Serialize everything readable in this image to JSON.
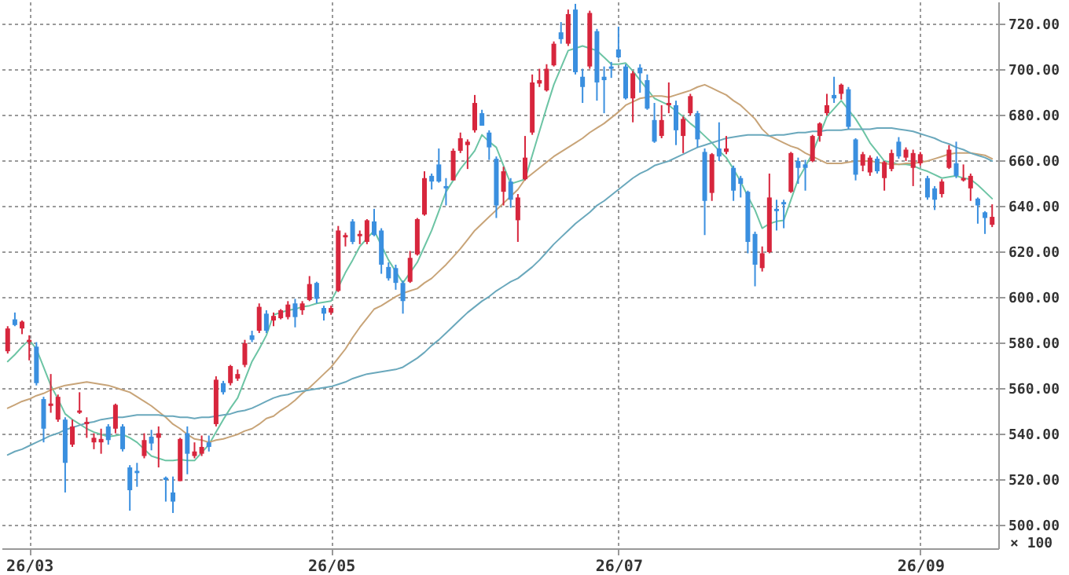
{
  "chart_data": {
    "type": "candlestick",
    "categories": [
      null,
      null,
      null,
      "26/03",
      null,
      null,
      null,
      null,
      null,
      null,
      null,
      null,
      null,
      null,
      null,
      null,
      null,
      null,
      null,
      null,
      null,
      null,
      null,
      null,
      null,
      null,
      null,
      null,
      null,
      null,
      null,
      null,
      null,
      null,
      null,
      null,
      null,
      null,
      null,
      null,
      null,
      null,
      null,
      null,
      null,
      "26/05",
      null,
      null,
      null,
      null,
      null,
      null,
      null,
      null,
      null,
      null,
      null,
      null,
      null,
      null,
      null,
      null,
      null,
      null,
      null,
      null,
      null,
      null,
      null,
      null,
      null,
      null,
      null,
      null,
      null,
      null,
      null,
      null,
      null,
      null,
      null,
      null,
      null,
      null,
      null,
      "26/07",
      null,
      null,
      null,
      null,
      null,
      null,
      null,
      null,
      null,
      null,
      null,
      null,
      null,
      null,
      null,
      null,
      null,
      null,
      null,
      null,
      null,
      null,
      null,
      null,
      null,
      null,
      null,
      null,
      null,
      null,
      null,
      null,
      null,
      null,
      null,
      null,
      null,
      null,
      null,
      null,
      null,
      "26/09",
      null,
      null,
      null,
      null,
      null,
      null,
      null,
      null,
      null,
      null
    ],
    "ohlc": [
      [
        576,
        587,
        575,
        586
      ],
      [
        590,
        593,
        587,
        587.5
      ],
      [
        586,
        589.5,
        583.5,
        589
      ],
      [
        580,
        583,
        572,
        581
      ],
      [
        578,
        580,
        561,
        562
      ],
      [
        555,
        556,
        536,
        542
      ],
      [
        552,
        566,
        549,
        553
      ],
      [
        546,
        557,
        545,
        556
      ],
      [
        546,
        547,
        514,
        527
      ],
      [
        535,
        546,
        534,
        543
      ],
      [
        549,
        558,
        548.5,
        550
      ],
      [
        544,
        547,
        538,
        545
      ],
      [
        536,
        540,
        533,
        538
      ],
      [
        536,
        542,
        531,
        537.5
      ],
      [
        543,
        544,
        535,
        537
      ],
      [
        542,
        553,
        540,
        552.5
      ],
      [
        543,
        544,
        532,
        533
      ],
      [
        525,
        526,
        506,
        515
      ],
      [
        523.5,
        527,
        516.5,
        522.5
      ],
      [
        530,
        540,
        529,
        537
      ],
      [
        538.5,
        541.5,
        532.5,
        535.5
      ],
      [
        538,
        543,
        525,
        540
      ],
      [
        520.5,
        521,
        510,
        519.5
      ],
      [
        514,
        521,
        505,
        510
      ],
      [
        519,
        538,
        519,
        537.5
      ],
      [
        540,
        543,
        522,
        531
      ],
      [
        530,
        536,
        529,
        532
      ],
      [
        531,
        539,
        530,
        534
      ],
      [
        536,
        539,
        532,
        534
      ],
      [
        544,
        565,
        543,
        563.5
      ],
      [
        562,
        563,
        557,
        558
      ],
      [
        562,
        570,
        561,
        569.5
      ],
      [
        564,
        568,
        563,
        566
      ],
      [
        570,
        581,
        569,
        579.5
      ],
      [
        583,
        585,
        580,
        581
      ],
      [
        585,
        597,
        584,
        595.5
      ],
      [
        592.5,
        594,
        584,
        585
      ],
      [
        589.5,
        593,
        587,
        591.5
      ],
      [
        590.5,
        594.5,
        590,
        594
      ],
      [
        591,
        598,
        590,
        596.5
      ],
      [
        597,
        599,
        586.5,
        591
      ],
      [
        594,
        598,
        592,
        597
      ],
      [
        598.5,
        609,
        598,
        605.5
      ],
      [
        606,
        606.5,
        597,
        599
      ],
      [
        595,
        596,
        589.5,
        592.5
      ],
      [
        593,
        596,
        592,
        595
      ],
      [
        602.5,
        631,
        602,
        629
      ],
      [
        626,
        628,
        622,
        627
      ],
      [
        633,
        634,
        623,
        624
      ],
      [
        626.5,
        629,
        623,
        627.5
      ],
      [
        624,
        634,
        623,
        633.5
      ],
      [
        633,
        638.5,
        626.5,
        627
      ],
      [
        629,
        630,
        610,
        614
      ],
      [
        613,
        615,
        607,
        608
      ],
      [
        612.5,
        614,
        603,
        606
      ],
      [
        606,
        607,
        592.5,
        598
      ],
      [
        606.5,
        620,
        606,
        617
      ],
      [
        618.5,
        634.5,
        618,
        634
      ],
      [
        636,
        655,
        635.5,
        652
      ],
      [
        653,
        654,
        647,
        650.5
      ],
      [
        658,
        665,
        650,
        650.5
      ],
      [
        648.5,
        652,
        640,
        647.5
      ],
      [
        651,
        665,
        651,
        664
      ],
      [
        664,
        672,
        663,
        669.5
      ],
      [
        666.5,
        669,
        656,
        668
      ],
      [
        673,
        688.5,
        672,
        685
      ],
      [
        680.5,
        682,
        675,
        675
      ],
      [
        672,
        673,
        660,
        665.5
      ],
      [
        660.5,
        661.5,
        634.5,
        640
      ],
      [
        646,
        657,
        640,
        655
      ],
      [
        650.5,
        652,
        639,
        642.5
      ],
      [
        633.5,
        645,
        624,
        643.5
      ],
      [
        651.5,
        670.5,
        651,
        661
      ],
      [
        672,
        697.5,
        671,
        694
      ],
      [
        693.5,
        700,
        692,
        695
      ],
      [
        690.5,
        702,
        690,
        700
      ],
      [
        701.5,
        712,
        701,
        711
      ],
      [
        716,
        720.5,
        711,
        713
      ],
      [
        711,
        726,
        710,
        724
      ],
      [
        726,
        728.5,
        697.5,
        698.5
      ],
      [
        696.5,
        700,
        685,
        692
      ],
      [
        701,
        725.5,
        700,
        724.5
      ],
      [
        716.5,
        717.5,
        686,
        694
      ],
      [
        696.5,
        701,
        680.5,
        695
      ],
      [
        701,
        703,
        696,
        700
      ],
      [
        708.5,
        718.5,
        704.5,
        705
      ],
      [
        701,
        702,
        686.5,
        687
      ],
      [
        687,
        699,
        676.5,
        698
      ],
      [
        700.5,
        702,
        689.5,
        698
      ],
      [
        695,
        697.5,
        682,
        682.5
      ],
      [
        677.5,
        685,
        667.5,
        668
      ],
      [
        670.5,
        684,
        669.5,
        677.5
      ],
      [
        684,
        694,
        680.5,
        685
      ],
      [
        684,
        686,
        666.5,
        673
      ],
      [
        670.5,
        679,
        663,
        678
      ],
      [
        680.5,
        689,
        679.5,
        688
      ],
      [
        680.5,
        681.5,
        665.5,
        669
      ],
      [
        663.5,
        665,
        627,
        642
      ],
      [
        645.5,
        663,
        642,
        662.5
      ],
      [
        665,
        676.5,
        659.5,
        661.5
      ],
      [
        663.5,
        670.5,
        662.5,
        665
      ],
      [
        656.5,
        657.5,
        642,
        646.5
      ],
      [
        652,
        653,
        643.5,
        649.5
      ],
      [
        646,
        646.5,
        619,
        624
      ],
      [
        627.5,
        628.5,
        604.5,
        614
      ],
      [
        612.5,
        622,
        611,
        619
      ],
      [
        619.5,
        654,
        619,
        643.5
      ],
      [
        638.5,
        642.5,
        629,
        637.5
      ],
      [
        641.5,
        642.5,
        630,
        640.5
      ],
      [
        646,
        663.5,
        645.5,
        663
      ],
      [
        659.5,
        661,
        649.5,
        656.5
      ],
      [
        658,
        660,
        646.5,
        656.5
      ],
      [
        659.5,
        671,
        659,
        670.5
      ],
      [
        670.5,
        676.5,
        668,
        676
      ],
      [
        680.5,
        689,
        679.5,
        684
      ],
      [
        688.5,
        696.5,
        685,
        687
      ],
      [
        689,
        693.5,
        686.5,
        693
      ],
      [
        691,
        692,
        673.5,
        674.5
      ],
      [
        669,
        669.5,
        651,
        653.5
      ],
      [
        657.5,
        663.5,
        655,
        662.5
      ],
      [
        654.5,
        662,
        653,
        661
      ],
      [
        660.5,
        661.5,
        654,
        655
      ],
      [
        652,
        659.5,
        646.5,
        659
      ],
      [
        656,
        664.5,
        655,
        663
      ],
      [
        668,
        670,
        660.5,
        661.5
      ],
      [
        661,
        665.5,
        659.5,
        664.5
      ],
      [
        656.5,
        664.5,
        648.5,
        663
      ],
      [
        658.5,
        663.5,
        657.5,
        662.5
      ],
      [
        652,
        653,
        642.5,
        643.5
      ],
      [
        647.5,
        648.5,
        638,
        642.5
      ],
      [
        645,
        651.5,
        643.5,
        650.5
      ],
      [
        656.5,
        666.5,
        656,
        664.5
      ],
      [
        658.5,
        668,
        652,
        653
      ],
      [
        651,
        658,
        650.5,
        652
      ],
      [
        647.5,
        654,
        642,
        653
      ],
      [
        643,
        643.5,
        632,
        640
      ],
      [
        637,
        637.5,
        627.5,
        634.5
      ],
      [
        631.5,
        640.5,
        630.5,
        635
      ]
    ],
    "colors": [
      "#d7263d",
      "#3a8fdf",
      "#d7263d",
      "#d7263d",
      "#3a8fdf",
      "#3a8fdf",
      "#d7263d",
      "#d7263d",
      "#3a8fdf",
      "#d7263d",
      "#d7263d",
      "#d7263d",
      "#d7263d",
      "#d7263d",
      "#3a8fdf",
      "#d7263d",
      "#3a8fdf",
      "#3a8fdf",
      "#3a8fdf",
      "#d7263d",
      "#3a8fdf",
      "#d7263d",
      "#3a8fdf",
      "#3a8fdf",
      "#d7263d",
      "#3a8fdf",
      "#d7263d",
      "#d7263d",
      "#3a8fdf",
      "#d7263d",
      "#3a8fdf",
      "#d7263d",
      "#d7263d",
      "#d7263d",
      "#3a8fdf",
      "#d7263d",
      "#3a8fdf",
      "#d7263d",
      "#d7263d",
      "#d7263d",
      "#3a8fdf",
      "#d7263d",
      "#d7263d",
      "#3a8fdf",
      "#3a8fdf",
      "#d7263d",
      "#d7263d",
      "#d7263d",
      "#3a8fdf",
      "#d7263d",
      "#d7263d",
      "#3a8fdf",
      "#3a8fdf",
      "#3a8fdf",
      "#3a8fdf",
      "#3a8fdf",
      "#d7263d",
      "#d7263d",
      "#d7263d",
      "#3a8fdf",
      "#3a8fdf",
      "#3a8fdf",
      "#d7263d",
      "#d7263d",
      "#d7263d",
      "#d7263d",
      "#3a8fdf",
      "#3a8fdf",
      "#3a8fdf",
      "#d7263d",
      "#3a8fdf",
      "#d7263d",
      "#d7263d",
      "#d7263d",
      "#d7263d",
      "#d7263d",
      "#d7263d",
      "#3a8fdf",
      "#d7263d",
      "#3a8fdf",
      "#3a8fdf",
      "#d7263d",
      "#3a8fdf",
      "#3a8fdf",
      "#3a8fdf",
      "#3a8fdf",
      "#3a8fdf",
      "#d7263d",
      "#3a8fdf",
      "#3a8fdf",
      "#3a8fdf",
      "#d7263d",
      "#d7263d",
      "#3a8fdf",
      "#d7263d",
      "#d7263d",
      "#3a8fdf",
      "#3a8fdf",
      "#d7263d",
      "#3a8fdf",
      "#d7263d",
      "#3a8fdf",
      "#3a8fdf",
      "#3a8fdf",
      "#3a8fdf",
      "#d7263d",
      "#d7263d",
      "#3a8fdf",
      "#3a8fdf",
      "#d7263d",
      "#3a8fdf",
      "#3a8fdf",
      "#d7263d",
      "#d7263d",
      "#d7263d",
      "#3a8fdf",
      "#d7263d",
      "#3a8fdf",
      "#3a8fdf",
      "#d7263d",
      "#d7263d",
      "#3a8fdf",
      "#d7263d",
      "#d7263d",
      "#3a8fdf",
      "#d7263d",
      "#d7263d",
      "#d7263d",
      "#3a8fdf",
      "#3a8fdf",
      "#d7263d",
      "#d7263d",
      "#3a8fdf",
      "#d7263d",
      "#d7263d",
      "#3a8fdf",
      "#3a8fdf",
      "#d7263d"
    ],
    "series": [
      {
        "type": "line",
        "color": "#6cc4a4",
        "values": [
          571.5,
          574.5,
          578,
          581,
          577,
          569,
          561,
          555,
          548.5,
          546,
          544,
          542,
          540.5,
          539.5,
          538.5,
          539,
          539.5,
          538,
          536,
          533,
          530,
          529,
          528,
          528,
          528.5,
          528,
          528,
          531.5,
          535,
          540.5,
          546,
          551,
          555.5,
          563.5,
          571.5,
          577,
          583,
          592,
          593,
          594,
          594.5,
          595.5,
          596,
          597,
          597.5,
          598,
          604,
          610.5,
          616,
          622,
          625.5,
          629,
          622.5,
          616,
          611,
          606,
          610.5,
          615,
          622,
          629,
          637.5,
          646,
          651,
          656,
          660,
          664,
          671,
          668,
          665.5,
          657.5,
          649.5,
          650.5,
          651.5,
          662,
          672.5,
          683,
          693,
          700.5,
          708,
          709,
          710,
          709,
          708,
          705,
          702,
          702,
          702.5,
          699,
          695,
          691,
          687,
          685.5,
          684,
          681.5,
          679,
          676,
          673.5,
          670.5,
          667.5,
          664,
          661,
          656,
          650.5,
          644,
          638,
          630,
          632,
          633,
          633.5,
          642.5,
          651.5,
          657,
          663,
          671,
          679,
          682.5,
          686,
          682,
          678,
          673,
          667.5,
          663.5,
          659.5,
          659,
          658,
          658,
          657.5,
          656,
          655,
          653.5,
          652,
          652.5,
          653,
          652,
          651.5,
          649,
          646,
          643
        ]
      },
      {
        "type": "line",
        "color": "#c8a478",
        "values": [
          551,
          552.5,
          554,
          555,
          556.5,
          557.5,
          559,
          560,
          561,
          561.5,
          562,
          562.5,
          562,
          561.5,
          561,
          560,
          559,
          558,
          556,
          554,
          552,
          549.5,
          547,
          544,
          542,
          539.5,
          537.5,
          537,
          536,
          537,
          537.5,
          538.5,
          539.5,
          541,
          542,
          544,
          546.5,
          547.5,
          550,
          552,
          554.5,
          557.5,
          560,
          563,
          566,
          569,
          573,
          577,
          582,
          586.5,
          590.5,
          594.5,
          596,
          598,
          600,
          601.5,
          602.5,
          603.5,
          606,
          608,
          611,
          614,
          617.5,
          621,
          625,
          629,
          632,
          635,
          638,
          641,
          644,
          647,
          651.5,
          654,
          656.5,
          659,
          661.5,
          663.5,
          665.5,
          667.5,
          669.5,
          672,
          674,
          676,
          678.5,
          681,
          684,
          685.5,
          687,
          687.5,
          688,
          688,
          687.5,
          688.5,
          689.5,
          690.5,
          692,
          693,
          691.5,
          690,
          688.5,
          686,
          684,
          681,
          678,
          673.5,
          670.5,
          669,
          667.5,
          666,
          665,
          663,
          661.5,
          660,
          658.5,
          658.5,
          658.5,
          659,
          659.5,
          659.5,
          659.5,
          659,
          658.5,
          658,
          658,
          658.5,
          658.5,
          659,
          659.5,
          660.5,
          661.5,
          662.5,
          663,
          663,
          663,
          662.5,
          662,
          660.5
        ]
      },
      {
        "type": "line",
        "color": "#6aa8bc",
        "values": [
          530.5,
          532,
          533,
          534.5,
          536,
          537.5,
          539,
          540,
          541.5,
          542.5,
          543.5,
          544.5,
          545,
          546,
          546.5,
          547,
          547,
          547.5,
          548,
          548,
          548,
          548,
          547.5,
          547.5,
          547,
          547,
          546.5,
          547,
          547,
          547.5,
          548,
          548.5,
          549.5,
          550,
          551,
          552.5,
          554,
          555.5,
          556.5,
          557,
          558,
          558.5,
          559,
          559.5,
          560,
          560.5,
          561.5,
          562.5,
          564,
          565,
          566,
          566.5,
          567,
          567.5,
          568,
          569,
          571,
          573,
          575.5,
          578.5,
          581,
          584,
          587,
          590,
          593,
          595.5,
          598,
          600,
          602.5,
          604.5,
          606.5,
          608,
          610.5,
          613,
          616,
          619.5,
          623,
          626,
          629,
          632,
          634.5,
          637,
          640,
          642,
          644.5,
          647,
          649.5,
          652,
          654,
          655.5,
          657.5,
          658.5,
          659.5,
          661,
          662.5,
          664,
          665.5,
          666.5,
          667.5,
          668.5,
          669.5,
          670,
          670.5,
          671,
          671,
          671,
          670.5,
          671,
          671,
          671.5,
          672,
          672,
          672.5,
          672.5,
          673,
          673,
          673,
          673.5,
          673.5,
          673.5,
          673.5,
          674,
          674,
          674,
          673.5,
          673,
          672.5,
          671.5,
          670.5,
          669.5,
          668,
          667,
          665.5,
          664.5,
          663,
          662,
          661,
          659.5
        ]
      }
    ],
    "ylabel": "× 100",
    "ylim": [
      489.5,
      729.5
    ],
    "yticks": [
      {
        "value": 500,
        "label": "500.00"
      },
      {
        "value": 520,
        "label": "520.00"
      },
      {
        "value": 540,
        "label": "540.00"
      },
      {
        "value": 560,
        "label": "560.00"
      },
      {
        "value": 580,
        "label": "580.00"
      },
      {
        "value": 600,
        "label": "600.00"
      },
      {
        "value": 620,
        "label": "620.00"
      },
      {
        "value": 640,
        "label": "640.00"
      },
      {
        "value": 660,
        "label": "660.00"
      },
      {
        "value": 680,
        "label": "680.00"
      },
      {
        "value": 700,
        "label": "700.00"
      },
      {
        "value": 720,
        "label": "720.00"
      }
    ],
    "grid": true
  }
}
